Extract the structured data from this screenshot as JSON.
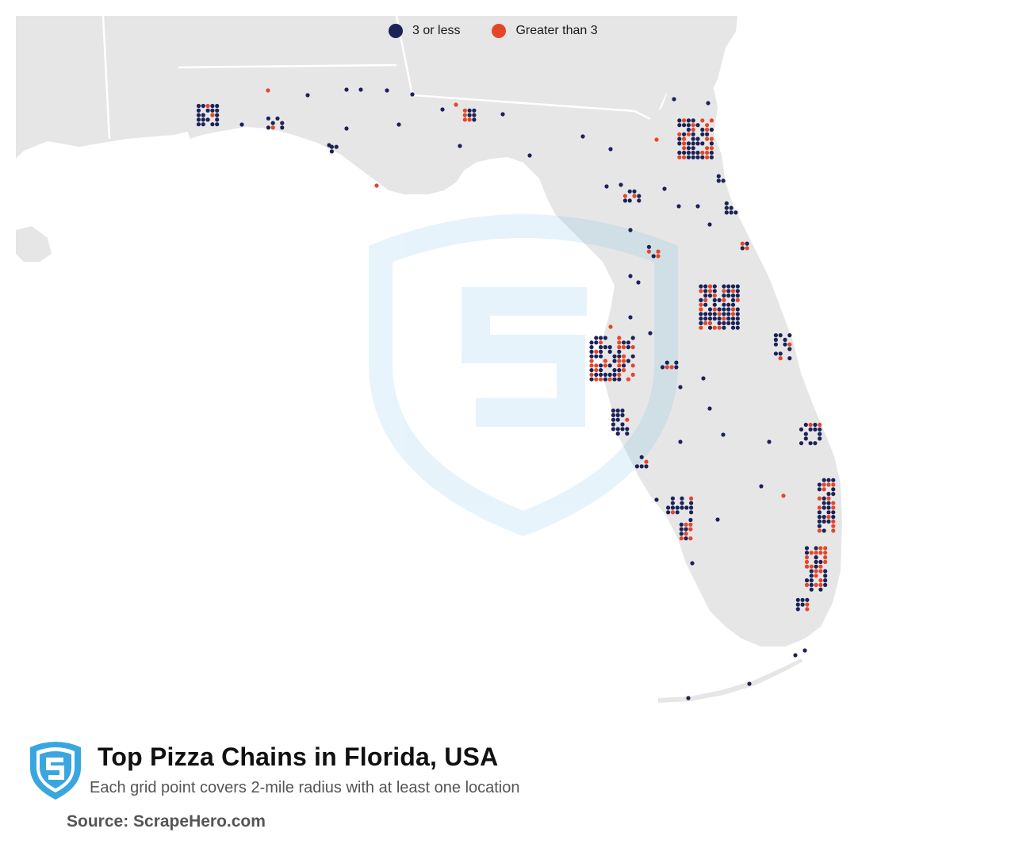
{
  "title": "Top Pizza Chains in Florida, USA",
  "subtitle": "Each grid point covers 2-mile radius with at least one location",
  "source": "Source: ScrapeHero.com",
  "legend": [
    {
      "label": "3 or less",
      "color": "#1b2258"
    },
    {
      "label": "Greater than 3",
      "color": "#e5462a"
    }
  ],
  "colors": {
    "land": "#e6e6e6",
    "water": "#ffffff",
    "borders": "#ffffff",
    "low": "#1b2258",
    "high": "#e5462a",
    "logo": "#3aa6e0"
  },
  "logo_icon": "scrapehero-shield-icon",
  "watermark_icon": "scrapehero-shield-watermark-icon"
}
